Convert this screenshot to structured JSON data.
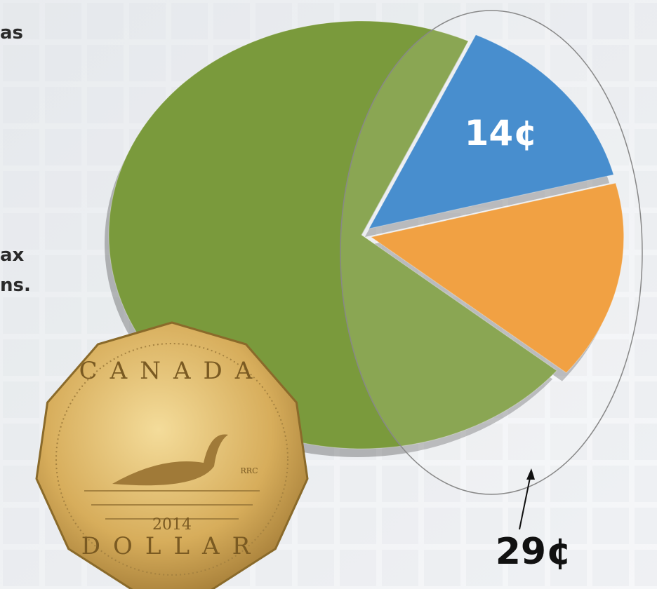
{
  "page_text": [
    "as",
    "ax",
    "ns."
  ],
  "chart_data": {
    "type": "pie",
    "values": [
      14,
      15,
      71
    ],
    "value_labels": [
      "14¢",
      null,
      null
    ],
    "colors": [
      "#2f7fc8",
      "#f0952a",
      "#7a9a3c"
    ],
    "annotations": [
      {
        "value": 29,
        "label": "29¢"
      }
    ]
  },
  "coin": {
    "top": "CANADA",
    "bottom": "DOLLAR",
    "year": "2014",
    "mint": "RRC"
  }
}
